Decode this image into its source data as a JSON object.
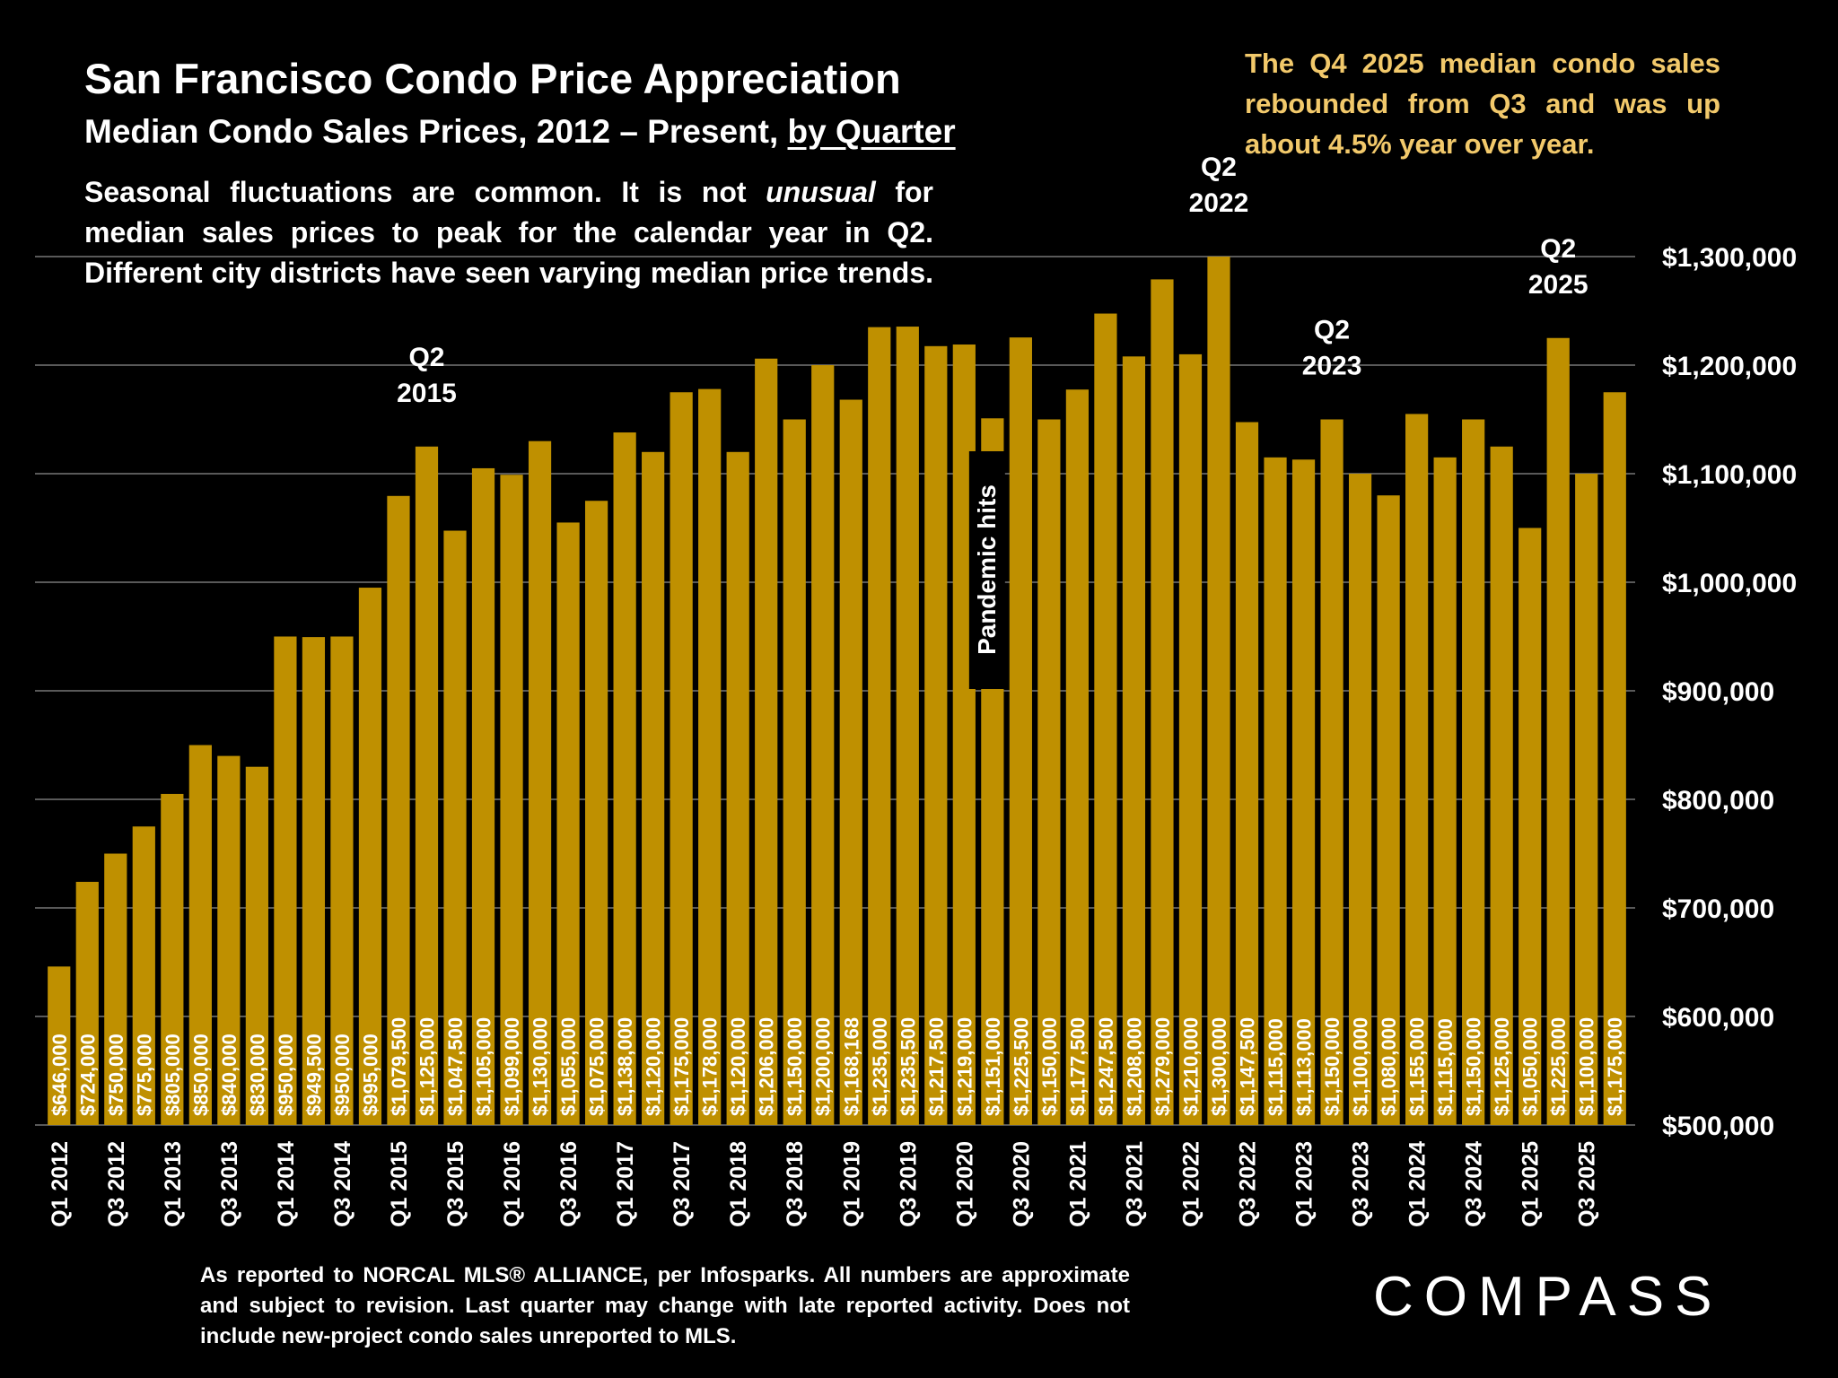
{
  "title": "San Francisco Condo Price Appreciation",
  "subtitle_prefix": "Median Condo Sales Prices, 2012 – Present, ",
  "subtitle_underlined": "by Quarter",
  "description_parts": [
    "Seasonal fluctuations are common. It is not ",
    "unusual",
    " for median sales prices to peak for the calendar year in Q2. Different city districts have seen varying median price trends."
  ],
  "note": "The Q4 2025 median condo sales rebounded from Q3 and was up about 4.5% year over year.",
  "footnote": "As reported to NORCAL MLS® ALLIANCE, per Infosparks. All numbers are approximate and subject to revision. Last quarter may change with late reported activity. Does not include new-project condo sales unreported to MLS.",
  "logo": "COMPASS",
  "colors": {
    "bar": "#bf9000",
    "background": "#000000",
    "note": "#f2c96b",
    "text": "#ffffff"
  },
  "chart_data": {
    "type": "bar",
    "categories": [
      "Q1 2012",
      "Q2 2012",
      "Q3 2012",
      "Q4 2012",
      "Q1 2013",
      "Q2 2013",
      "Q3 2013",
      "Q4 2013",
      "Q1 2014",
      "Q2 2014",
      "Q3 2014",
      "Q4 2014",
      "Q1 2015",
      "Q2 2015",
      "Q3 2015",
      "Q4 2015",
      "Q1 2016",
      "Q2 2016",
      "Q3 2016",
      "Q4 2016",
      "Q1 2017",
      "Q2 2017",
      "Q3 2017",
      "Q4 2017",
      "Q1 2018",
      "Q2 2018",
      "Q3 2018",
      "Q4 2018",
      "Q1 2019",
      "Q2 2019",
      "Q3 2019",
      "Q4 2019",
      "Q1 2020",
      "Q2 2020",
      "Q3 2020",
      "Q4 2020",
      "Q1 2021",
      "Q2 2021",
      "Q3 2021",
      "Q4 2021",
      "Q1 2022",
      "Q2 2022",
      "Q3 2022",
      "Q4 2022",
      "Q1 2023",
      "Q2 2023",
      "Q3 2023",
      "Q4 2023",
      "Q1 2024",
      "Q2 2024",
      "Q3 2024",
      "Q4 2024",
      "Q1 2025",
      "Q2 2025",
      "Q3 2025",
      "Q4 2025"
    ],
    "x_tick_labels": [
      "Q1 2012",
      "Q3 2012",
      "Q1 2013",
      "Q3 2013",
      "Q1 2014",
      "Q3 2014",
      "Q1 2015",
      "Q3 2015",
      "Q1 2016",
      "Q3 2016",
      "Q1 2017",
      "Q3 2017",
      "Q1 2018",
      "Q3 2018",
      "Q1 2019",
      "Q3 2019",
      "Q1 2020",
      "Q3 2020",
      "Q1 2021",
      "Q3 2021",
      "Q1 2022",
      "Q3 2022",
      "Q1 2023",
      "Q3 2023",
      "Q1 2024",
      "Q3 2024",
      "Q1 2025",
      "Q3 2025"
    ],
    "values": [
      646000,
      724000,
      750000,
      775000,
      805000,
      850000,
      840000,
      830000,
      950000,
      949500,
      950000,
      995000,
      1079500,
      1125000,
      1047500,
      1105000,
      1099000,
      1130000,
      1055000,
      1075000,
      1138000,
      1120000,
      1175000,
      1178000,
      1120000,
      1206000,
      1150000,
      1200000,
      1168168,
      1235000,
      1235500,
      1217500,
      1219000,
      1151000,
      1225500,
      1150000,
      1177500,
      1247500,
      1208000,
      1279000,
      1210000,
      1300000,
      1147500,
      1115000,
      1113000,
      1150000,
      1100000,
      1080000,
      1155000,
      1115000,
      1150000,
      1125000,
      1050000,
      1225000,
      1100000,
      1175000
    ],
    "data_labels": [
      "$646,000",
      "$724,000",
      "$750,000",
      "$775,000",
      "$805,000",
      "$850,000",
      "$840,000",
      "$830,000",
      "$950,000",
      "$949,500",
      "$950,000",
      "$995,000",
      "$1,079,500",
      "$1,125,000",
      "$1,047,500",
      "$1,105,000",
      "$1,099,000",
      "$1,130,000",
      "$1,055,000",
      "$1,075,000",
      "$1,138,000",
      "$1,120,000",
      "$1,175,000",
      "$1,178,000",
      "$1,120,000",
      "$1,206,000",
      "$1,150,000",
      "$1,200,000",
      "$1,168,168",
      "$1,235,000",
      "$1,235,500",
      "$1,217,500",
      "$1,219,000",
      "$1,151,000",
      "$1,225,500",
      "$1,150,000",
      "$1,177,500",
      "$1,247,500",
      "$1,208,000",
      "$1,279,000",
      "$1,210,000",
      "$1,300,000",
      "$1,147,500",
      "$1,115,000",
      "$1,113,000",
      "$1,150,000",
      "$1,100,000",
      "$1,080,000",
      "$1,155,000",
      "$1,115,000",
      "$1,150,000",
      "$1,125,000",
      "$1,050,000",
      "$1,225,000",
      "$1,100,000",
      "$1,175,000"
    ],
    "ylim": [
      500000,
      1300000
    ],
    "y_ticks": [
      "$500,000",
      "$600,000",
      "$700,000",
      "$800,000",
      "$900,000",
      "$1,000,000",
      "$1,100,000",
      "$1,200,000",
      "$1,300,000"
    ],
    "y_axis_side": "right",
    "grid": true,
    "annotations": [
      {
        "category": "Q2 2015",
        "lines": [
          "Q2",
          "2015"
        ]
      },
      {
        "category": "Q2 2022",
        "lines": [
          "Q2",
          "2022"
        ]
      },
      {
        "category": "Q2 2023",
        "lines": [
          "Q2",
          "2023"
        ]
      },
      {
        "category": "Q2 2025",
        "lines": [
          "Q2",
          "2025"
        ]
      }
    ],
    "event_label": {
      "category": "Q2 2020",
      "text": "Pandemic hits"
    }
  }
}
